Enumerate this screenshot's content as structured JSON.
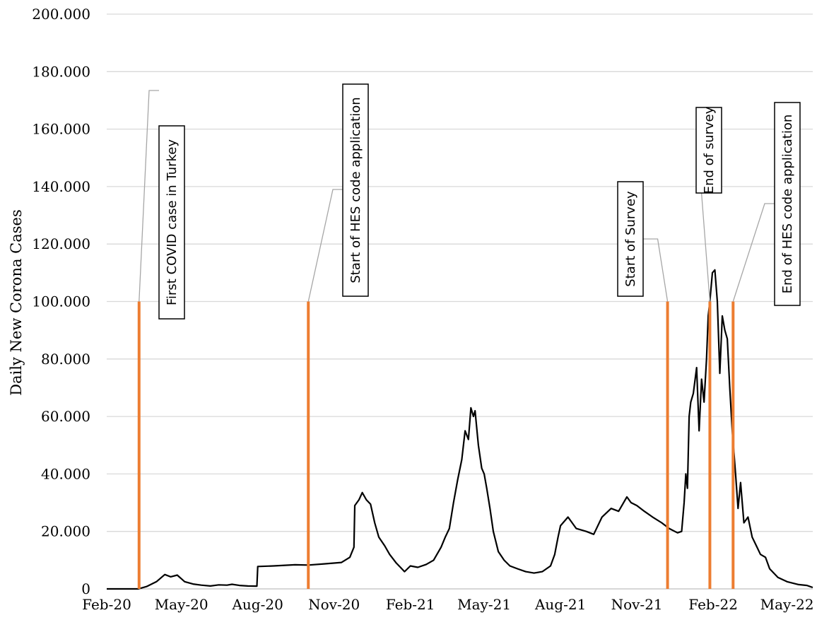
{
  "chart_data": {
    "type": "line",
    "title": "",
    "xlabel": "",
    "ylabel": "Daily New Corona Cases",
    "ylim": [
      0,
      200000
    ],
    "y_ticks": [
      0,
      20000,
      40000,
      60000,
      80000,
      100000,
      120000,
      140000,
      160000,
      180000,
      200000
    ],
    "y_tick_labels": [
      "0",
      "20.000",
      "40.000",
      "60.000",
      "80.000",
      "100.000",
      "120.000",
      "140.000",
      "160.000",
      "180.000",
      "200.000"
    ],
    "x_range": [
      "2020-02-01",
      "2022-06-01"
    ],
    "x_tick_labels": [
      {
        "date": "2020-02-01",
        "label": "Feb-20"
      },
      {
        "date": "2020-05-01",
        "label": "May-20"
      },
      {
        "date": "2020-08-01",
        "label": "Aug-20"
      },
      {
        "date": "2020-11-01",
        "label": "Nov-20"
      },
      {
        "date": "2021-02-01",
        "label": "Feb-21"
      },
      {
        "date": "2021-05-01",
        "label": "May-21"
      },
      {
        "date": "2021-08-01",
        "label": "Aug-21"
      },
      {
        "date": "2021-11-01",
        "label": "Nov-21"
      },
      {
        "date": "2022-02-01",
        "label": "Feb-22"
      },
      {
        "date": "2022-05-01",
        "label": "May-22"
      }
    ],
    "grid": true,
    "series": [
      {
        "color": "#000000",
        "points": [
          [
            "2020-02-01",
            0
          ],
          [
            "2020-03-10",
            0
          ],
          [
            "2020-03-20",
            800
          ],
          [
            "2020-04-01",
            2500
          ],
          [
            "2020-04-11",
            5000
          ],
          [
            "2020-04-18",
            4200
          ],
          [
            "2020-04-26",
            4800
          ],
          [
            "2020-05-05",
            2500
          ],
          [
            "2020-05-15",
            1700
          ],
          [
            "2020-05-25",
            1300
          ],
          [
            "2020-06-05",
            1000
          ],
          [
            "2020-06-15",
            1400
          ],
          [
            "2020-06-25",
            1300
          ],
          [
            "2020-07-01",
            1600
          ],
          [
            "2020-07-10",
            1200
          ],
          [
            "2020-07-20",
            1000
          ],
          [
            "2020-07-31",
            950
          ],
          [
            "2020-08-01",
            7800
          ],
          [
            "2020-08-20",
            8000
          ],
          [
            "2020-09-15",
            8400
          ],
          [
            "2020-10-01",
            8300
          ],
          [
            "2020-10-20",
            8700
          ],
          [
            "2020-11-10",
            9200
          ],
          [
            "2020-11-20",
            11000
          ],
          [
            "2020-11-25",
            14500
          ],
          [
            "2020-11-26",
            29000
          ],
          [
            "2020-12-01",
            31000
          ],
          [
            "2020-12-05",
            33500
          ],
          [
            "2020-12-10",
            31000
          ],
          [
            "2020-12-15",
            29500
          ],
          [
            "2020-12-20",
            23000
          ],
          [
            "2020-12-25",
            18000
          ],
          [
            "2021-01-01",
            15000
          ],
          [
            "2021-01-07",
            12000
          ],
          [
            "2021-01-15",
            9000
          ],
          [
            "2021-01-20",
            7500
          ],
          [
            "2021-01-25",
            6000
          ],
          [
            "2021-02-01",
            8000
          ],
          [
            "2021-02-10",
            7500
          ],
          [
            "2021-02-20",
            8500
          ],
          [
            "2021-03-01",
            10000
          ],
          [
            "2021-03-10",
            14500
          ],
          [
            "2021-03-15",
            18000
          ],
          [
            "2021-03-20",
            21000
          ],
          [
            "2021-03-25",
            30000
          ],
          [
            "2021-03-30",
            38000
          ],
          [
            "2021-04-04",
            45000
          ],
          [
            "2021-04-08",
            55000
          ],
          [
            "2021-04-12",
            52000
          ],
          [
            "2021-04-15",
            63000
          ],
          [
            "2021-04-18",
            60000
          ],
          [
            "2021-04-20",
            62000
          ],
          [
            "2021-04-24",
            50000
          ],
          [
            "2021-04-28",
            42000
          ],
          [
            "2021-05-01",
            40000
          ],
          [
            "2021-05-04",
            35000
          ],
          [
            "2021-05-08",
            28000
          ],
          [
            "2021-05-12",
            20000
          ],
          [
            "2021-05-18",
            13000
          ],
          [
            "2021-05-25",
            10000
          ],
          [
            "2021-06-01",
            8000
          ],
          [
            "2021-06-10",
            7000
          ],
          [
            "2021-06-20",
            6000
          ],
          [
            "2021-06-30",
            5500
          ],
          [
            "2021-07-10",
            6000
          ],
          [
            "2021-07-20",
            8000
          ],
          [
            "2021-07-25",
            12000
          ],
          [
            "2021-07-29",
            18000
          ],
          [
            "2021-08-01",
            22000
          ],
          [
            "2021-08-10",
            25000
          ],
          [
            "2021-08-20",
            21000
          ],
          [
            "2021-09-01",
            20000
          ],
          [
            "2021-09-10",
            19000
          ],
          [
            "2021-09-20",
            25000
          ],
          [
            "2021-10-01",
            28000
          ],
          [
            "2021-10-10",
            27000
          ],
          [
            "2021-10-20",
            32000
          ],
          [
            "2021-10-25",
            30000
          ],
          [
            "2021-11-01",
            29000
          ],
          [
            "2021-11-10",
            27000
          ],
          [
            "2021-11-20",
            25000
          ],
          [
            "2021-12-01",
            23000
          ],
          [
            "2021-12-10",
            21000
          ],
          [
            "2021-12-20",
            19500
          ],
          [
            "2021-12-25",
            20000
          ],
          [
            "2021-12-28",
            30000
          ],
          [
            "2021-12-30",
            40000
          ],
          [
            "2022-01-01",
            35000
          ],
          [
            "2022-01-03",
            60000
          ],
          [
            "2022-01-05",
            65000
          ],
          [
            "2022-01-08",
            68000
          ],
          [
            "2022-01-12",
            77000
          ],
          [
            "2022-01-15",
            55000
          ],
          [
            "2022-01-18",
            73000
          ],
          [
            "2022-01-21",
            65000
          ],
          [
            "2022-01-24",
            80000
          ],
          [
            "2022-01-26",
            95000
          ],
          [
            "2022-01-28",
            100000
          ],
          [
            "2022-01-31",
            110000
          ],
          [
            "2022-02-03",
            111000
          ],
          [
            "2022-02-06",
            100000
          ],
          [
            "2022-02-09",
            75000
          ],
          [
            "2022-02-12",
            95000
          ],
          [
            "2022-02-15",
            90000
          ],
          [
            "2022-02-18",
            87000
          ],
          [
            "2022-02-21",
            70000
          ],
          [
            "2022-02-24",
            55000
          ],
          [
            "2022-02-28",
            40000
          ],
          [
            "2022-03-03",
            28000
          ],
          [
            "2022-03-06",
            37000
          ],
          [
            "2022-03-10",
            23000
          ],
          [
            "2022-03-15",
            25000
          ],
          [
            "2022-03-20",
            18000
          ],
          [
            "2022-03-25",
            15000
          ],
          [
            "2022-03-30",
            12000
          ],
          [
            "2022-04-05",
            11000
          ],
          [
            "2022-04-10",
            7000
          ],
          [
            "2022-04-20",
            4000
          ],
          [
            "2022-05-01",
            2500
          ],
          [
            "2022-05-15",
            1500
          ],
          [
            "2022-05-25",
            1200
          ],
          [
            "2022-06-01",
            500
          ]
        ]
      }
    ],
    "markers": [
      {
        "date": "2020-03-11",
        "top": 100000,
        "color": "#ED7D31",
        "label": "First COVID case in Turkey"
      },
      {
        "date": "2020-10-01",
        "top": 100000,
        "color": "#ED7D31",
        "label": "Start of HES code application"
      },
      {
        "date": "2021-12-08",
        "top": 100000,
        "color": "#ED7D31",
        "label": "Start of Survey"
      },
      {
        "date": "2022-01-28",
        "top": 100000,
        "color": "#ED7D31",
        "label": "End of survey"
      },
      {
        "date": "2022-02-25",
        "top": 100000,
        "color": "#ED7D31",
        "label": "End of HES code application"
      }
    ]
  }
}
